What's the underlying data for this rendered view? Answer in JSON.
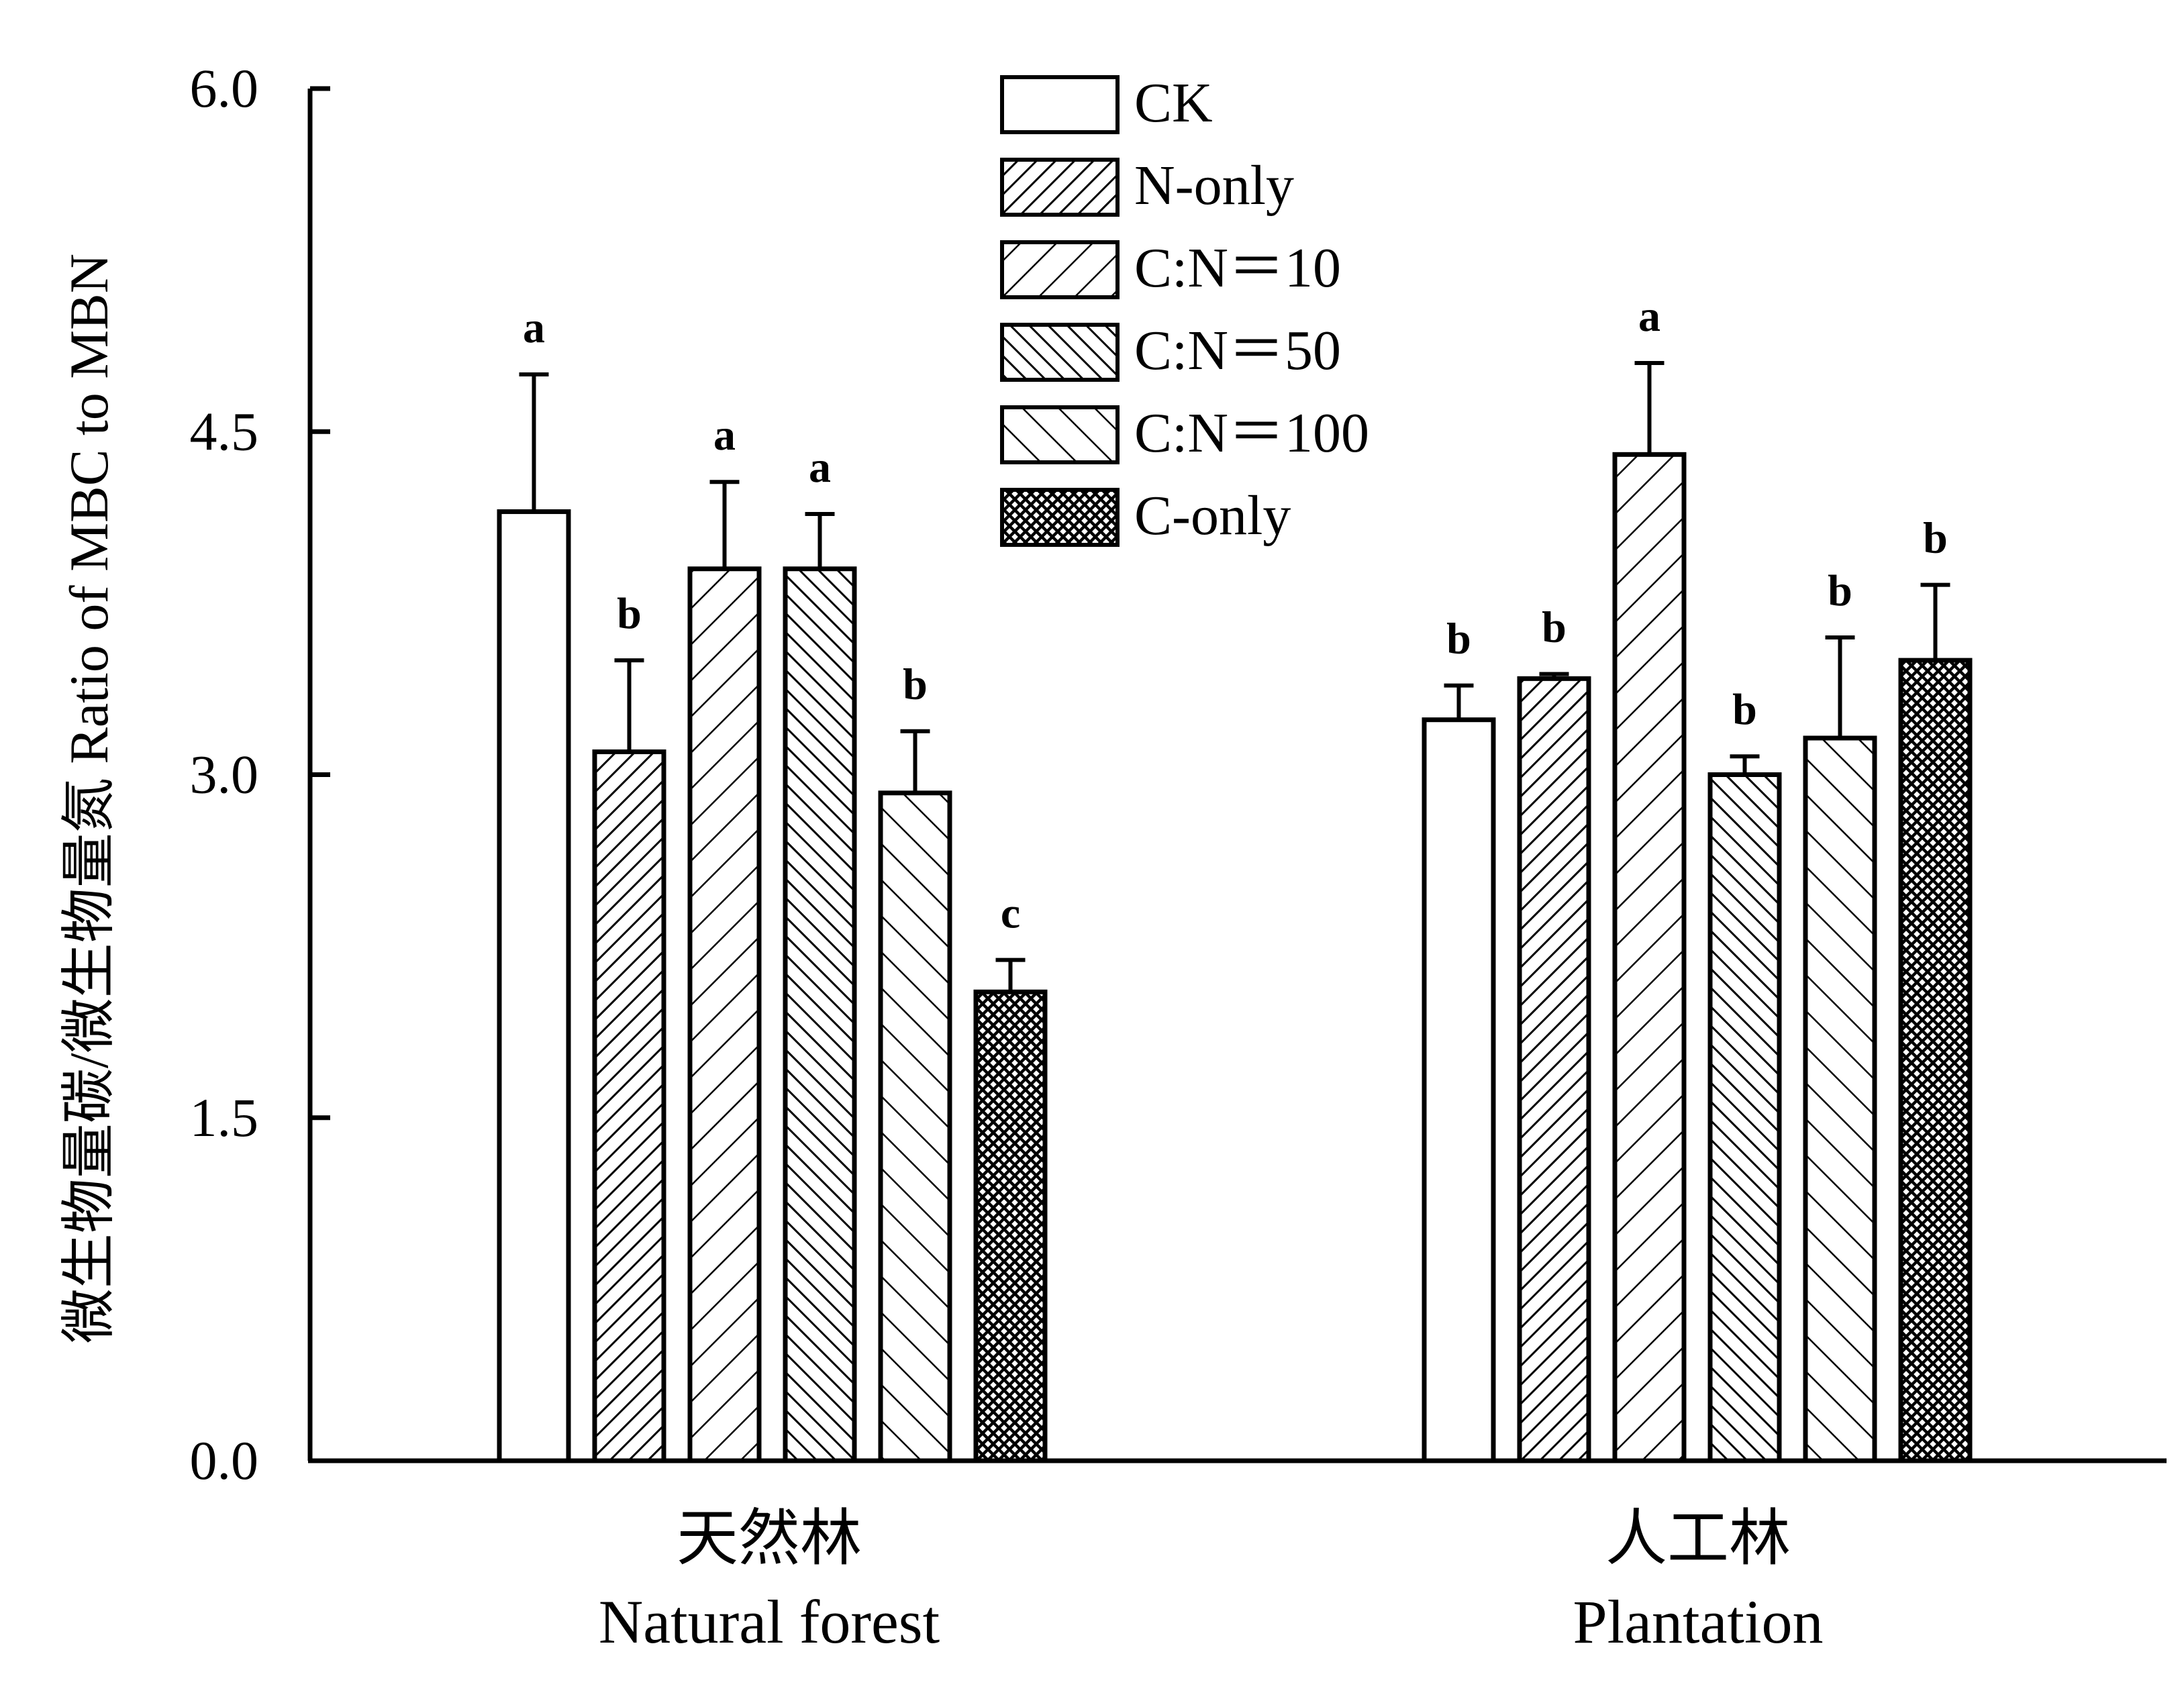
{
  "chart_data": {
    "type": "bar",
    "ylabel": "微生物量碳/微生物量氮 Ratio of MBC to MBN",
    "xlabel": "",
    "ylim": [
      0,
      6.0
    ],
    "yticks": [
      "0.0",
      "1.5",
      "3.0",
      "4.5",
      "6.0"
    ],
    "ytick_values": [
      0,
      1.5,
      3.0,
      4.5,
      6.0
    ],
    "categories": [
      {
        "zh": "天然林",
        "en": "Natural forest"
      },
      {
        "zh": "人工林",
        "en": "Plantation"
      }
    ],
    "legend_position": "top-center",
    "grid": false,
    "series": [
      {
        "name": "CK",
        "pattern": "none",
        "values": [
          4.15,
          3.24
        ],
        "errors": [
          0.6,
          0.15
        ],
        "letters": [
          "a",
          "b"
        ]
      },
      {
        "name": "N-only",
        "pattern": "dense-diag",
        "values": [
          3.1,
          3.42
        ],
        "errors": [
          0.4,
          0.02
        ],
        "letters": [
          "b",
          "b"
        ]
      },
      {
        "name": "C:N＝10",
        "pattern": "sparse-diag",
        "values": [
          3.9,
          4.4
        ],
        "errors": [
          0.38,
          0.4
        ],
        "letters": [
          "a",
          "a"
        ]
      },
      {
        "name": "C:N＝50",
        "pattern": "dense-anti",
        "values": [
          3.9,
          3.0
        ],
        "errors": [
          0.24,
          0.08
        ],
        "letters": [
          "a",
          "b"
        ]
      },
      {
        "name": "C:N＝100",
        "pattern": "sparse-anti",
        "values": [
          2.92,
          3.16
        ],
        "errors": [
          0.27,
          0.44
        ],
        "letters": [
          "b",
          "b"
        ]
      },
      {
        "name": "C-only",
        "pattern": "cross",
        "values": [
          2.05,
          3.5
        ],
        "errors": [
          0.14,
          0.33
        ],
        "letters": [
          "c",
          "b"
        ]
      }
    ]
  }
}
